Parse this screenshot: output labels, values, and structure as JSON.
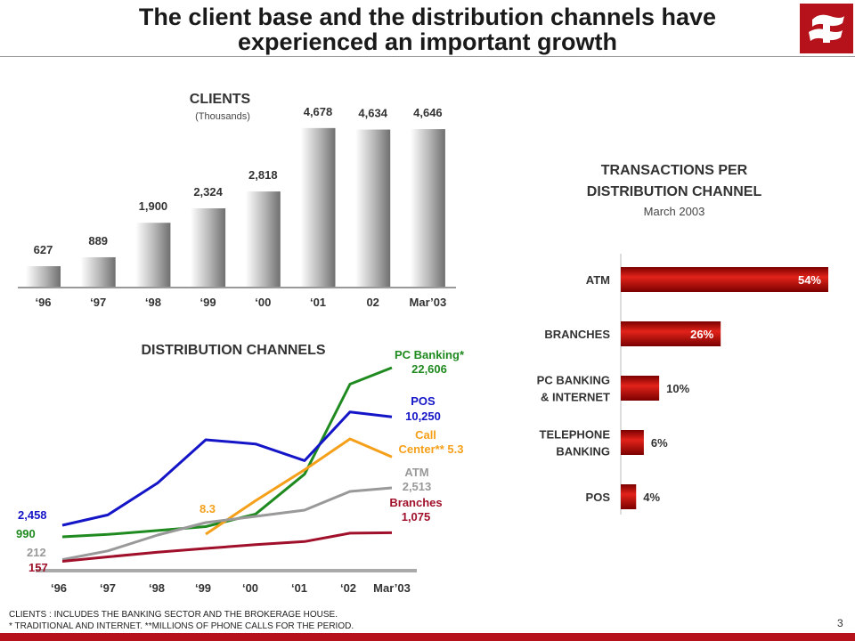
{
  "header": {
    "title_line1": "The client base and the distribution channels have",
    "title_line2": "experienced an important growth",
    "page_number": "3",
    "brand_color": "#b5121b"
  },
  "footnotes": [
    "CLIENTS : INCLUDES THE BANKING SECTOR AND THE BROKERAGE HOUSE.",
    "* TRADITIONAL AND INTERNET. **MILLIONS OF PHONE CALLS FOR THE PERIOD."
  ],
  "chart_data": [
    {
      "type": "bar",
      "title": "CLIENTS",
      "subtitle": "(Thousands)",
      "categories": [
        "‘96",
        "‘97",
        "‘98",
        "‘99",
        "‘00",
        "‘01",
        "02",
        "Mar’03"
      ],
      "values": [
        627,
        889,
        1900,
        2324,
        2818,
        4678,
        4634,
        4646
      ],
      "value_labels": [
        "627",
        "889",
        "1,900",
        "2,324",
        "2,818",
        "4,678",
        "4,634",
        "4,646"
      ],
      "ylim": [
        0,
        4700
      ]
    },
    {
      "type": "line",
      "title": "DISTRIBUTION CHANNELS",
      "x": [
        "‘96",
        "‘97",
        "‘98",
        "‘99",
        "‘00",
        "‘01",
        "‘02",
        "Mar’03"
      ],
      "series": [
        {
          "name": "PC Banking*",
          "color": "#1f8a1f",
          "start_label": "990",
          "end_label": "22,606",
          "values": [
            990,
            1300,
            1800,
            2300,
            3900,
            9000,
            20500,
            22606
          ]
        },
        {
          "name": "POS",
          "color": "#1515c8",
          "start_label": "2,458",
          "end_label": "10,250",
          "values": [
            2458,
            3200,
            5500,
            8600,
            8300,
            7100,
            10600,
            10250
          ]
        },
        {
          "name": "Call Center** 5.3",
          "color": "#f5a01a",
          "start_label": "8.3",
          "end_label": "",
          "values": [
            null,
            null,
            null,
            8.3,
            7.0,
            5.8,
            4.6,
            5.3
          ]
        },
        {
          "name": "ATM",
          "color": "#999999",
          "start_label": "212",
          "end_label": "2,513",
          "values": [
            212,
            490,
            1000,
            1400,
            1600,
            1800,
            2400,
            2513
          ]
        },
        {
          "name": "Branches",
          "color": "#a0102a",
          "start_label": "157",
          "end_label": "1,075",
          "values": [
            157,
            300,
            450,
            570,
            690,
            790,
            1060,
            1075
          ]
        }
      ]
    },
    {
      "type": "bar",
      "orientation": "horizontal",
      "title": "TRANSACTIONS PER DISTRIBUTION CHANNEL",
      "subtitle": "March 2003",
      "categories": [
        "ATM",
        "BRANCHES",
        "PC BANKING & INTERNET",
        "TELEPHONE BANKING",
        "POS"
      ],
      "category_lines": [
        [
          "ATM"
        ],
        [
          "BRANCHES"
        ],
        [
          "PC BANKING",
          "& INTERNET"
        ],
        [
          "TELEPHONE",
          "BANKING"
        ],
        [
          "POS"
        ]
      ],
      "values": [
        54,
        26,
        10,
        6,
        4
      ],
      "value_labels": [
        "54%",
        "26%",
        "10%",
        "6%",
        "4%"
      ],
      "unit": "%",
      "xlim": [
        0,
        54
      ]
    }
  ]
}
